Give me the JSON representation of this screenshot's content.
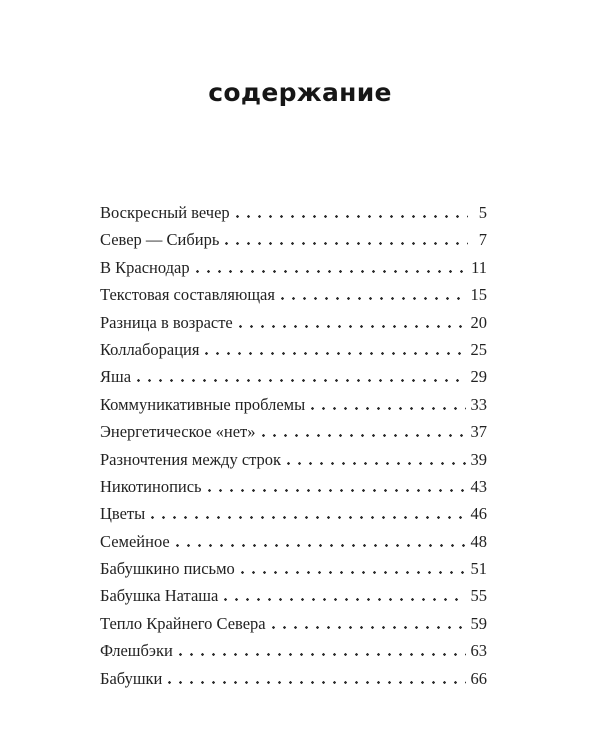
{
  "title": "содержание",
  "toc": {
    "entries": [
      {
        "label": "Воскресный вечер",
        "page": "5"
      },
      {
        "label": "Север — Сибирь",
        "page": "7"
      },
      {
        "label": "В Краснодар",
        "page": "11"
      },
      {
        "label": "Текстовая составляющая",
        "page": "15"
      },
      {
        "label": "Разница в возрасте",
        "page": "20"
      },
      {
        "label": "Коллаборация",
        "page": "25"
      },
      {
        "label": "Яша",
        "page": "29"
      },
      {
        "label": "Коммуникативные проблемы",
        "page": "33"
      },
      {
        "label": "Энергетическое «нет»",
        "page": "37"
      },
      {
        "label": "Разночтения между строк",
        "page": "39"
      },
      {
        "label": "Никотинопись",
        "page": "43"
      },
      {
        "label": "Цветы",
        "page": "46"
      },
      {
        "label": "Семейное",
        "page": "48"
      },
      {
        "label": "Бабушкино письмо",
        "page": "51"
      },
      {
        "label": "Бабушка Наташа",
        "page": "55"
      },
      {
        "label": "Тепло Крайнего Севера",
        "page": "59"
      },
      {
        "label": "Флешбэки",
        "page": "63"
      },
      {
        "label": "Бабушки",
        "page": "66"
      }
    ]
  },
  "colors": {
    "background": "#ffffff",
    "text": "#222222",
    "title": "#161616"
  }
}
